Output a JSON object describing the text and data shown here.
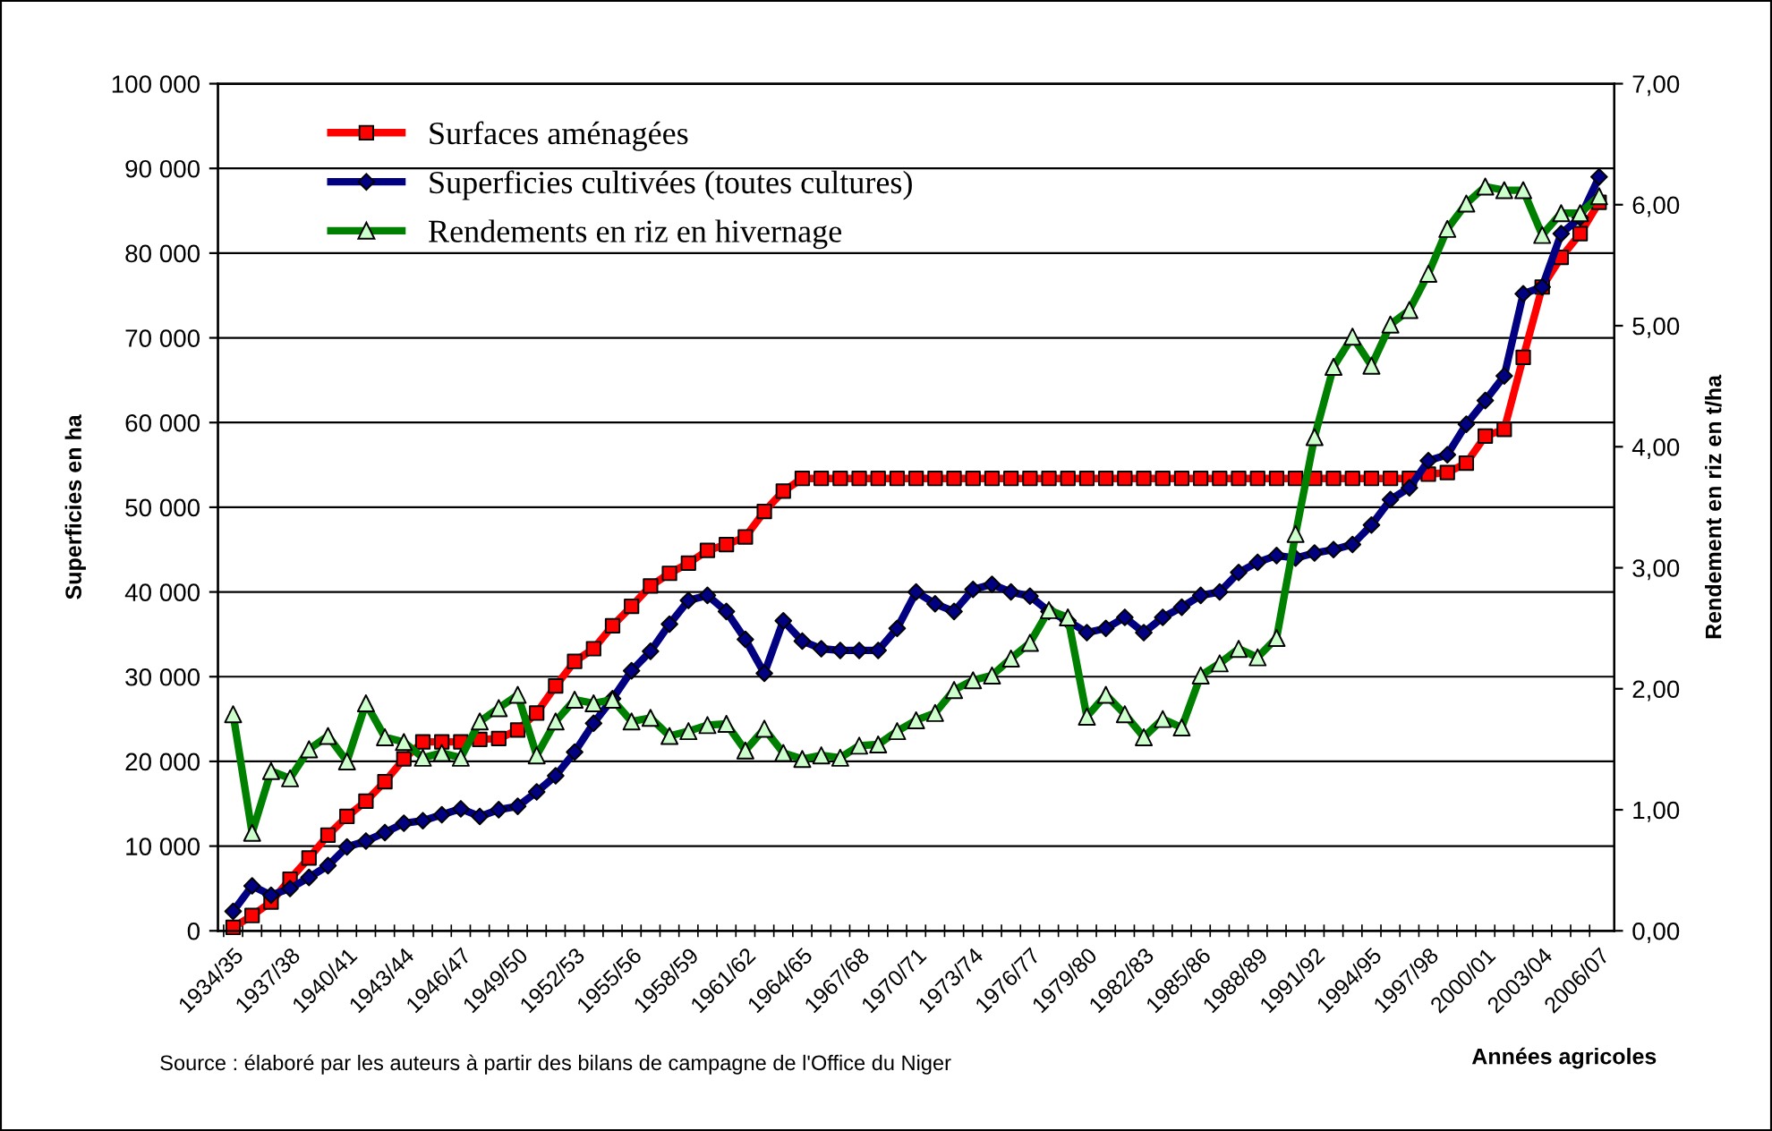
{
  "chart_data": {
    "type": "line",
    "categories": [
      "1934/35",
      null,
      null,
      "1937/38",
      null,
      null,
      "1940/41",
      null,
      null,
      "1943/44",
      null,
      null,
      "1946/47",
      null,
      null,
      "1949/50",
      null,
      null,
      "1952/53",
      null,
      null,
      "1955/56",
      null,
      null,
      "1958/59",
      null,
      null,
      "1961/62",
      null,
      null,
      "1964/65",
      null,
      null,
      "1967/68",
      null,
      null,
      "1970/71",
      null,
      null,
      "1973/74",
      null,
      null,
      "1976/77",
      null,
      null,
      "1979/80",
      null,
      null,
      "1982/83",
      null,
      null,
      "1985/86",
      null,
      null,
      "1988/89",
      null,
      null,
      "1991/92",
      null,
      null,
      "1994/95",
      null,
      null,
      "1997/98",
      null,
      null,
      "2000/01",
      null,
      null,
      "2003/04",
      null,
      null,
      "2006/07"
    ],
    "series": [
      {
        "name": "Surfaces aménagées",
        "color": "#ff0000",
        "marker": "square",
        "values": [
          400,
          1800,
          3400,
          6100,
          8600,
          11300,
          13500,
          15300,
          17600,
          20300,
          22300,
          22300,
          22300,
          22600,
          22700,
          23700,
          25700,
          28900,
          31800,
          33300,
          36000,
          38300,
          40700,
          42200,
          43400,
          44900,
          45600,
          46500,
          49500,
          51900,
          53400,
          53400,
          53400,
          53400,
          53400,
          53400,
          53400,
          53400,
          53400,
          53400,
          53400,
          53400,
          53400,
          53400,
          53400,
          53400,
          53400,
          53400,
          53400,
          53400,
          53400,
          53400,
          53400,
          53400,
          53400,
          53400,
          53400,
          53400,
          53400,
          53400,
          53400,
          53400,
          53400,
          53900,
          54100,
          55200,
          58400,
          59200,
          67700,
          76000,
          79500,
          82300,
          86000
        ]
      },
      {
        "name": "Superficies cultivées (toutes cultures)",
        "color": "#000080",
        "marker": "diamond",
        "values": [
          2300,
          5300,
          4200,
          5000,
          6300,
          7700,
          9900,
          10600,
          11600,
          12700,
          13000,
          13700,
          14400,
          13500,
          14300,
          14700,
          16400,
          18300,
          21100,
          24500,
          27400,
          30700,
          33000,
          36200,
          39000,
          39600,
          37700,
          34400,
          30400,
          36600,
          34200,
          33300,
          33100,
          33100,
          33100,
          35700,
          40000,
          38600,
          37700,
          40300,
          40900,
          40000,
          39500,
          37700,
          36600,
          35200,
          35700,
          37000,
          35200,
          37000,
          38200,
          39600,
          40000,
          42300,
          43500,
          44300,
          44000,
          44600,
          45000,
          45600,
          47900,
          50900,
          52300,
          55500,
          56200,
          59800,
          62600,
          65500,
          75200,
          76000,
          82300,
          84200,
          89000
        ]
      },
      {
        "name": "Rendements en riz en hivernage",
        "color": "#008000",
        "marker": "triangle",
        "axis": "y2",
        "values": [
          1.79,
          0.81,
          1.32,
          1.26,
          1.5,
          1.61,
          1.4,
          1.88,
          1.6,
          1.56,
          1.43,
          1.47,
          1.43,
          1.73,
          1.84,
          1.95,
          1.45,
          1.73,
          1.91,
          1.88,
          1.91,
          1.73,
          1.76,
          1.61,
          1.65,
          1.7,
          1.71,
          1.49,
          1.67,
          1.47,
          1.42,
          1.45,
          1.43,
          1.53,
          1.54,
          1.65,
          1.74,
          1.8,
          1.99,
          2.07,
          2.11,
          2.25,
          2.38,
          2.65,
          2.59,
          1.77,
          1.95,
          1.79,
          1.6,
          1.75,
          1.68,
          2.11,
          2.21,
          2.33,
          2.26,
          2.42,
          3.28,
          4.08,
          4.66,
          4.91,
          4.67,
          5.01,
          5.13,
          5.43,
          5.8,
          6.01,
          6.15,
          6.12,
          6.12,
          5.75,
          5.93,
          5.93,
          6.07
        ]
      }
    ],
    "ylim": [
      0,
      100000
    ],
    "yticks": [
      0,
      {
        "value": 10000,
        "label": "10 000"
      },
      {
        "value": 20000,
        "label": "20 000"
      },
      {
        "value": 30000,
        "label": "30 000"
      },
      {
        "value": 40000,
        "label": "40 000"
      },
      {
        "value": 50000,
        "label": "50 000"
      },
      {
        "value": 60000,
        "label": "60 000"
      },
      {
        "value": 70000,
        "label": "70 000"
      },
      {
        "value": 80000,
        "label": "80 000"
      },
      {
        "value": 90000,
        "label": "90 000"
      },
      {
        "value": 100000,
        "label": "100 000"
      }
    ],
    "y2lim": [
      0,
      7
    ],
    "y2ticks": [
      {
        "value": 0,
        "label": "0,00"
      },
      {
        "value": 1,
        "label": "1,00"
      },
      {
        "value": 2,
        "label": "2,00"
      },
      {
        "value": 3,
        "label": "3,00"
      },
      {
        "value": 4,
        "label": "4,00"
      },
      {
        "value": 5,
        "label": "5,00"
      },
      {
        "value": 6,
        "label": "6,00"
      },
      {
        "value": 7,
        "label": "7,00"
      }
    ],
    "ylabel": "Superficies en ha",
    "y2label": "Rendement en riz en t/ha",
    "xlabel": "Années agricoles",
    "annotations": [
      "Source : élaboré par les auteurs à partir des bilans de campagne de l'Office du Niger"
    ],
    "grid": "y",
    "legend": "top left",
    "line_style": "solid"
  }
}
